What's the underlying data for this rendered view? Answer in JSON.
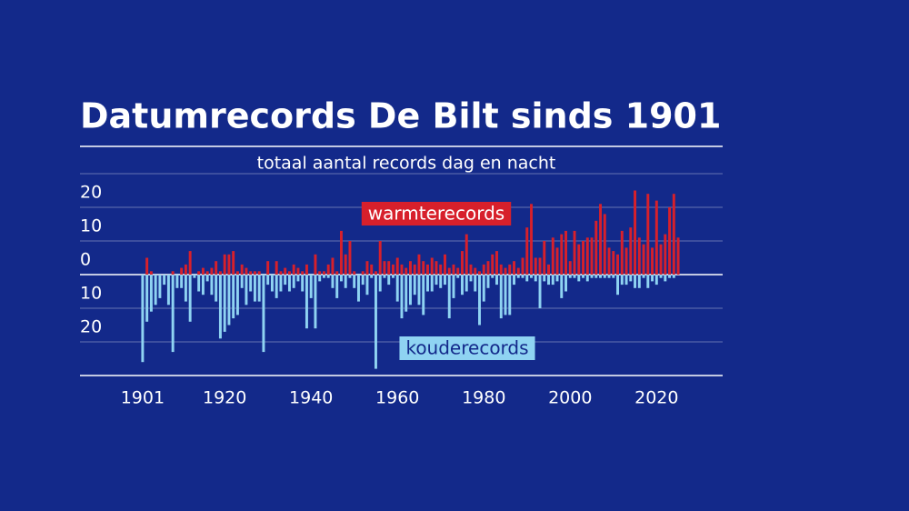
{
  "chart_data": {
    "type": "bar",
    "title": "Datumrecords De Bilt sinds 1901",
    "subtitle": "totaal aantal records dag en nacht",
    "x": [
      1901,
      1902,
      1903,
      1904,
      1905,
      1906,
      1907,
      1908,
      1909,
      1910,
      1911,
      1912,
      1913,
      1914,
      1915,
      1916,
      1917,
      1918,
      1919,
      1920,
      1921,
      1922,
      1923,
      1924,
      1925,
      1926,
      1927,
      1928,
      1929,
      1930,
      1931,
      1932,
      1933,
      1934,
      1935,
      1936,
      1937,
      1938,
      1939,
      1940,
      1941,
      1942,
      1943,
      1944,
      1945,
      1946,
      1947,
      1948,
      1949,
      1950,
      1951,
      1952,
      1953,
      1954,
      1955,
      1956,
      1957,
      1958,
      1959,
      1960,
      1961,
      1962,
      1963,
      1964,
      1965,
      1966,
      1967,
      1968,
      1969,
      1970,
      1971,
      1972,
      1973,
      1974,
      1975,
      1976,
      1977,
      1978,
      1979,
      1980,
      1981,
      1982,
      1983,
      1984,
      1985,
      1986,
      1987,
      1988,
      1989,
      1990,
      1991,
      1992,
      1993,
      1994,
      1995,
      1996,
      1997,
      1998,
      1999,
      2000,
      2001,
      2002,
      2003,
      2004,
      2005,
      2006,
      2007,
      2008,
      2009,
      2010,
      2011,
      2012,
      2013,
      2014,
      2015,
      2016,
      2017,
      2018,
      2019,
      2020,
      2021,
      2022,
      2023,
      2024,
      2025
    ],
    "series": [
      {
        "name": "warmterecords",
        "color": "#d7202b",
        "label_text_color": "#ffffff",
        "values": [
          0,
          5,
          1,
          0,
          0,
          0,
          0,
          1,
          0,
          2,
          3,
          7,
          0,
          1,
          2,
          1,
          2,
          4,
          1,
          6,
          6,
          7,
          1,
          3,
          2,
          1,
          1,
          1,
          0,
          4,
          0,
          4,
          1,
          2,
          1,
          3,
          2,
          1,
          3,
          0,
          6,
          1,
          1,
          3,
          5,
          1,
          13,
          6,
          10,
          1,
          0,
          1,
          4,
          3,
          1,
          10,
          4,
          4,
          3,
          5,
          3,
          2,
          4,
          3,
          6,
          4,
          3,
          5,
          4,
          3,
          6,
          2,
          3,
          2,
          7,
          12,
          3,
          2,
          1,
          3,
          4,
          6,
          7,
          3,
          2,
          3,
          4,
          2,
          5,
          14,
          21,
          5,
          5,
          10,
          3,
          11,
          8,
          12,
          13,
          4,
          13,
          9,
          10,
          11,
          11,
          16,
          21,
          18,
          8,
          7,
          6,
          13,
          8,
          14,
          25,
          11,
          9,
          24,
          8,
          22,
          9,
          12,
          20,
          24,
          11
        ]
      },
      {
        "name": "kouderecords",
        "color": "#8fd3f2",
        "label_text_color": "#13298a",
        "values": [
          -26,
          -14,
          -11,
          -9,
          -7,
          -3,
          -9,
          -23,
          -4,
          -4,
          -8,
          -14,
          -1,
          -5,
          -6,
          -2,
          -6,
          -8,
          -19,
          -17,
          -15,
          -13,
          -12,
          -4,
          -9,
          -5,
          -8,
          -8,
          -23,
          -3,
          -5,
          -7,
          -5,
          -3,
          -5,
          -4,
          -2,
          -5,
          -16,
          -7,
          -16,
          -2,
          -1,
          -1,
          -4,
          -7,
          -2,
          -4,
          -1,
          -4,
          -8,
          -3,
          -6,
          -1,
          -28,
          -5,
          -1,
          -3,
          -1,
          -8,
          -13,
          -11,
          -9,
          -6,
          -9,
          -12,
          -5,
          -5,
          -3,
          -4,
          -3,
          -13,
          -7,
          -1,
          -6,
          -5,
          -2,
          -5,
          -15,
          -8,
          -4,
          -1,
          -3,
          -13,
          -12,
          -12,
          -3,
          -1,
          -1,
          -2,
          -1,
          -2,
          -10,
          -2,
          -3,
          -3,
          -2,
          -7,
          -5,
          -1,
          -1,
          -2,
          -1,
          -2,
          -1,
          -1,
          -1,
          -1,
          -1,
          -1,
          -6,
          -3,
          -3,
          -2,
          -4,
          -4,
          -1,
          -4,
          -2,
          -3,
          -1,
          -2,
          -1,
          -1,
          0
        ]
      }
    ],
    "xlim": [
      1886.5,
      2035.3
    ],
    "xticks": [
      1901,
      1920,
      1940,
      1960,
      1980,
      2000,
      2020
    ],
    "ylim": [
      -30,
      30
    ],
    "yticks": [
      {
        "value": -20,
        "label": "20"
      },
      {
        "value": -10,
        "label": "10"
      },
      0,
      10,
      20
    ],
    "grid": true,
    "background": "#13298a"
  }
}
